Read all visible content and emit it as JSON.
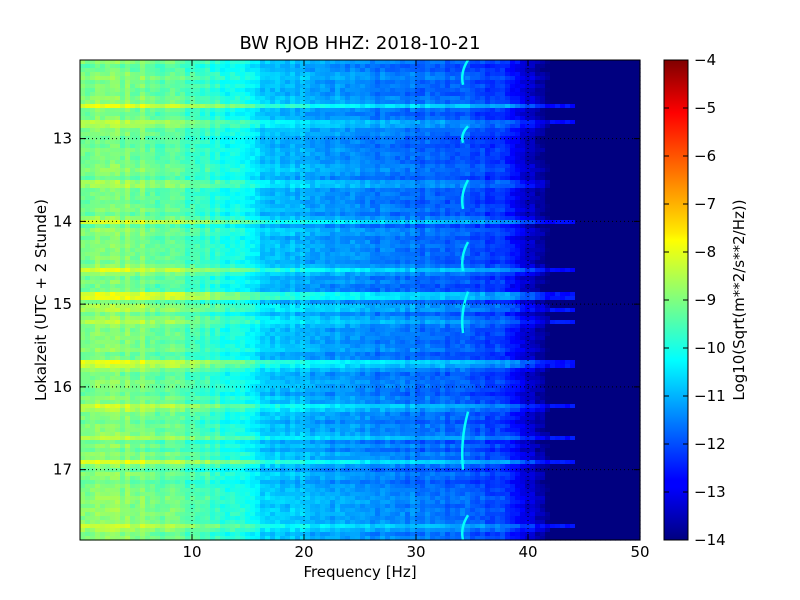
{
  "chart_data": {
    "type": "heatmap",
    "title": "BW RJOB HHZ: 2018-10-21",
    "xlabel": "Frequency [Hz]",
    "ylabel": "Lokalzeit (UTC + 2 Stunde)",
    "xlim": [
      0,
      50
    ],
    "ylim": [
      12.05,
      17.85
    ],
    "y_inverted": true,
    "x_ticks": [
      "10",
      "20",
      "30",
      "40",
      "50"
    ],
    "y_ticks": [
      "13",
      "14",
      "15",
      "16",
      "17"
    ],
    "grid": "dotted",
    "colorbar": {
      "label": "Log10(Sqrt(m**2/s**2/Hz))",
      "range": [
        -14,
        -4
      ],
      "ticks": [
        "−4",
        "−5",
        "−6",
        "−7",
        "−8",
        "−9",
        "−10",
        "−11",
        "−12",
        "−13",
        "−14"
      ],
      "colormap": "jet"
    },
    "spectral_profile": {
      "frequency_hz": [
        0,
        3,
        6,
        9,
        12,
        14,
        16,
        18,
        20,
        22,
        24,
        26,
        28,
        30,
        32,
        34,
        36,
        38,
        40,
        42,
        44,
        46,
        48,
        50
      ],
      "log_amplitude": [
        -9.1,
        -9.0,
        -9.1,
        -9.4,
        -9.8,
        -10.1,
        -10.6,
        -10.9,
        -11.0,
        -11.2,
        -11.3,
        -11.4,
        -11.5,
        -11.6,
        -11.8,
        -11.8,
        -12.0,
        -12.3,
        -13.2,
        -14.0,
        -14.0,
        -14.0,
        -14.0,
        -14.0
      ]
    },
    "high_energy_bands_hour": [
      12.6,
      12.82,
      13.55,
      14.0,
      14.6,
      14.88,
      14.93,
      15.05,
      15.2,
      15.7,
      15.75,
      16.25,
      16.6,
      16.9,
      17.7
    ],
    "tonal_line": {
      "frequency_hz": 34.2,
      "segments_hour": [
        [
          12.05,
          12.35
        ],
        [
          12.85,
          13.05
        ],
        [
          13.5,
          13.85
        ],
        [
          14.25,
          14.6
        ],
        [
          14.85,
          15.35
        ],
        [
          16.3,
          17.0
        ],
        [
          17.55,
          17.85
        ]
      ]
    }
  }
}
